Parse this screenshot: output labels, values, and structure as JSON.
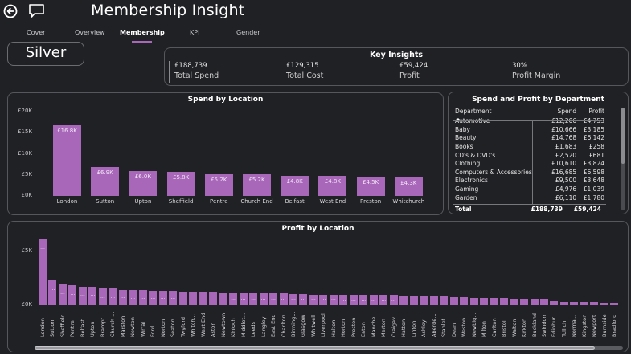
{
  "header": {
    "title": "Membership Insight",
    "back_icon": "back-arrow-circle-icon",
    "comment_icon": "comment-icon"
  },
  "nav": {
    "tabs": [
      {
        "label": "Cover",
        "active": false
      },
      {
        "label": "Overview",
        "active": false
      },
      {
        "label": "Membership",
        "active": true
      },
      {
        "label": "KPI",
        "active": false
      },
      {
        "label": "Gender",
        "active": false
      }
    ]
  },
  "membership_tier": "Silver",
  "key_insights": {
    "title": "Key Insights",
    "items": [
      {
        "value": "£188,739",
        "label": "Total Spend"
      },
      {
        "value": "£129,315",
        "label": "Total Cost"
      },
      {
        "value": "£59,424",
        "label": "Profit"
      },
      {
        "value": "30%",
        "label": "Profit Margin"
      }
    ]
  },
  "department_table": {
    "title": "Spend and Profit by Department",
    "columns": [
      "Department",
      "Spend",
      "Profit"
    ],
    "rows": [
      [
        "Automotive",
        "£12,206",
        "£4,753"
      ],
      [
        "Baby",
        "£10,666",
        "£3,185"
      ],
      [
        "Beauty",
        "£14,768",
        "£6,142"
      ],
      [
        "Books",
        "£1,683",
        "£258"
      ],
      [
        "CD's & DVD's",
        "£2,520",
        "£681"
      ],
      [
        "Clothing",
        "£10,610",
        "£3,824"
      ],
      [
        "Computers & Accessories",
        "£16,685",
        "£6,598"
      ],
      [
        "Electronics",
        "£9,500",
        "£3,648"
      ],
      [
        "Gaming",
        "£4,976",
        "£1,039"
      ],
      [
        "Garden",
        "£6,110",
        "£1,780"
      ]
    ],
    "total": [
      "Total",
      "£188,739",
      "£59,424"
    ]
  },
  "colors": {
    "accent": "#a867b9",
    "background": "#202125",
    "border": "#55575c"
  },
  "chart_data": [
    {
      "type": "bar",
      "title": "Spend by Location",
      "xlabel": "",
      "ylabel": "",
      "categories": [
        "London",
        "Sutton",
        "Upton",
        "Sheffield",
        "Pentre",
        "Church End",
        "Belfast",
        "West End",
        "Preston",
        "Whitchurch"
      ],
      "values": [
        16800,
        6900,
        6000,
        5800,
        5200,
        5200,
        4800,
        4800,
        4500,
        4300
      ],
      "data_labels": [
        "£16.8K",
        "£6.9K",
        "£6.0K",
        "£5.8K",
        "£5.2K",
        "£5.2K",
        "£4.8K",
        "£4.8K",
        "£4.5K",
        "£4.3K"
      ],
      "yticks": [
        "£0K",
        "£5K",
        "£10K",
        "£15K",
        "£20K"
      ],
      "ylim": [
        0,
        20000
      ],
      "grid": false
    },
    {
      "type": "bar",
      "title": "Profit by Location",
      "xlabel": "",
      "ylabel": "",
      "categories": [
        "London",
        "Sutton",
        "Sheffield",
        "Pentre",
        "Belfast",
        "Upton",
        "Brampt...",
        "Church ...",
        "Marston",
        "Newton",
        "Wirral",
        "Ford",
        "Norton",
        "Seaton",
        "Twyford",
        "Whitch...",
        "West End",
        "Aston",
        "Newtown",
        "Kinloch",
        "Middlet...",
        "Leeds",
        "Langley",
        "East End",
        "Charlton",
        "Birming...",
        "Glasgow",
        "Whitwell",
        "Liverpool",
        "Halton",
        "Horton",
        "Preston",
        "Eaton",
        "Manche...",
        "Merton",
        "Craigav...",
        "Hatton",
        "Linton",
        "Ashley",
        "Aberde...",
        "Staplef...",
        "Dean",
        "Weston",
        "Newbig...",
        "Milton",
        "Carlton",
        "Bristol",
        "Walton",
        "Kirkton",
        "Buckland",
        "Swindon",
        "Edinbur...",
        "Tullich",
        "Norma...",
        "Kingston",
        "Newport",
        "Burnside",
        "Bradford"
      ],
      "values": [
        6100,
        2300,
        1950,
        1850,
        1700,
        1700,
        1550,
        1550,
        1450,
        1400,
        1400,
        1300,
        1300,
        1300,
        1200,
        1200,
        1200,
        1200,
        1150,
        1100,
        1100,
        1100,
        1100,
        1100,
        1100,
        1050,
        1050,
        1000,
        1000,
        1000,
        950,
        950,
        950,
        900,
        900,
        900,
        850,
        850,
        850,
        800,
        800,
        750,
        750,
        700,
        700,
        650,
        650,
        600,
        600,
        550,
        500,
        350,
        300,
        300,
        300,
        300,
        250,
        150
      ],
      "yticks": [
        "£0K",
        "£5K"
      ],
      "ylim": [
        0,
        6500
      ],
      "grid": false
    }
  ]
}
